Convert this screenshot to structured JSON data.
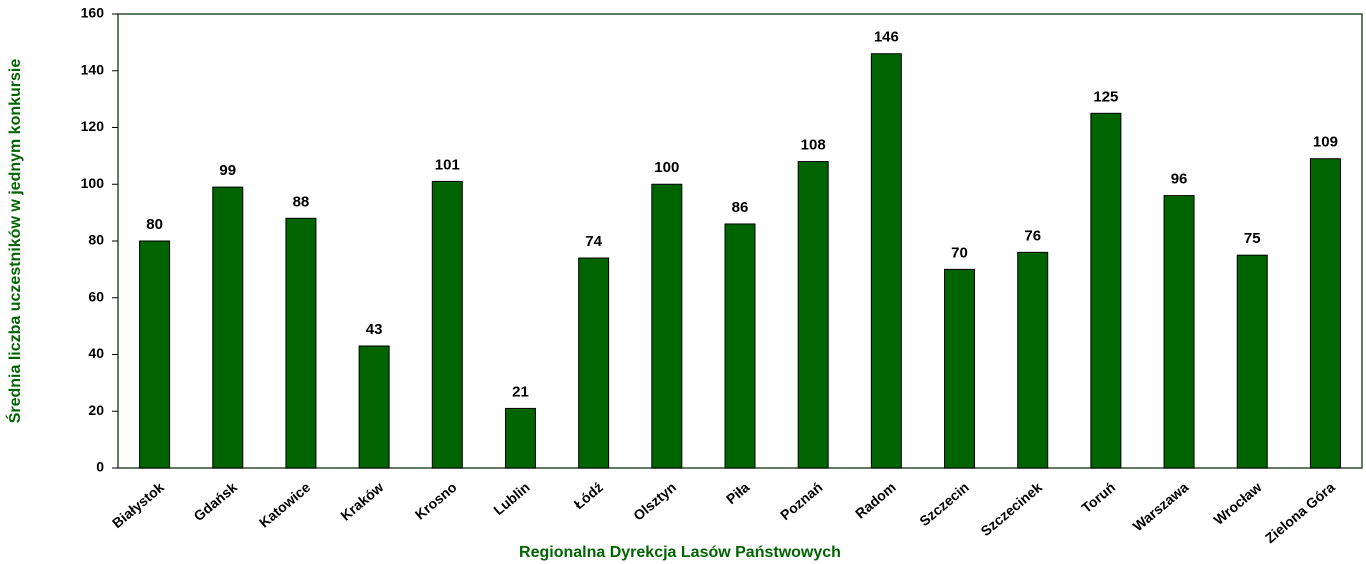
{
  "chart_data": {
    "type": "bar",
    "x_label": "Regionalna Dyrekcja Lasów Państwowych",
    "y_label": "Średnia liczba uczestników w jednym konkursie",
    "categories": [
      "Białystok",
      "Gdańsk",
      "Katowice",
      "Kraków",
      "Krosno",
      "Lublin",
      "Łódź",
      "Olsztyn",
      "Piła",
      "Poznań",
      "Radom",
      "Szczecin",
      "Szczecinek",
      "Toruń",
      "Warszawa",
      "Wrocław",
      "Zielona Góra"
    ],
    "values": [
      80,
      99,
      88,
      43,
      101,
      21,
      74,
      100,
      86,
      108,
      146,
      70,
      76,
      125,
      96,
      75,
      109
    ],
    "color": "#006400",
    "ylim": [
      0,
      160
    ],
    "yticks": [
      0,
      20,
      40,
      60,
      80,
      100,
      120,
      140,
      160
    ],
    "grid": false
  }
}
